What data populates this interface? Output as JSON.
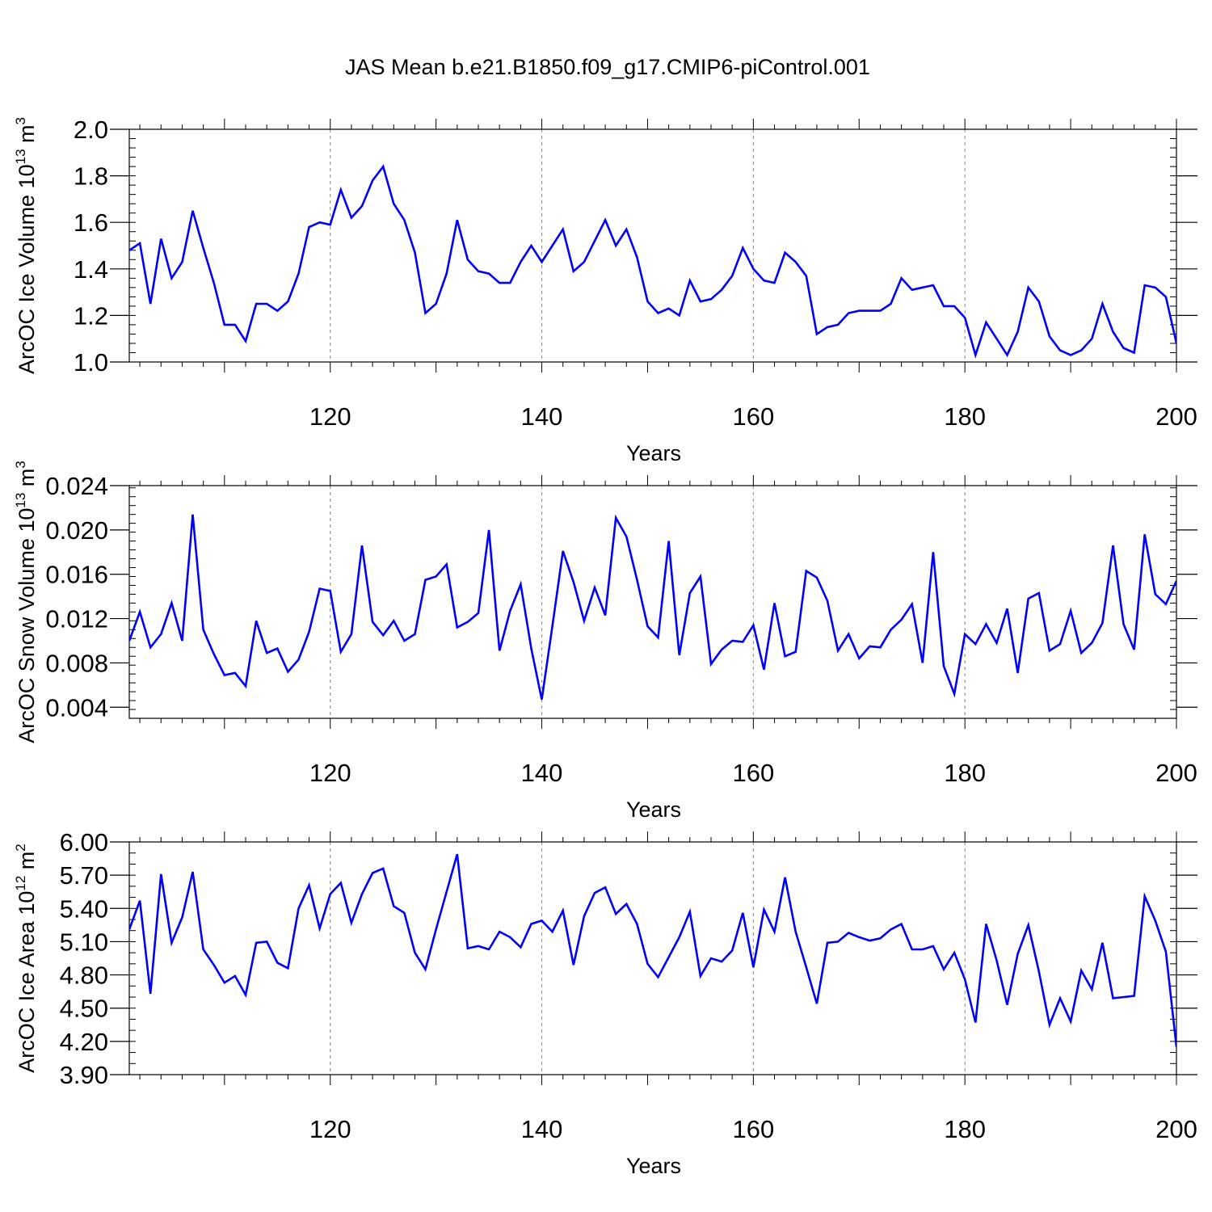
{
  "chart_data": {
    "type": "line",
    "title": "JAS Mean b.e21.B1850.f09_g17.CMIP6-piControl.001",
    "line_color": "#0000ff",
    "grid_color": "#888888",
    "panels": [
      {
        "ylabel_main": "ArcOC Ice Volume 10",
        "ylabel_sup": "13",
        "ylabel_unit": " m",
        "ylabel_unit_sup": "3",
        "xlabel": "Years",
        "xlim": [
          101,
          200
        ],
        "ylim": [
          1.0,
          2.0
        ],
        "x_ticks": [
          120,
          140,
          160,
          180,
          200
        ],
        "x_tick_labels": [
          "120",
          "140",
          "160",
          "180",
          "200"
        ],
        "y_ticks": [
          1.0,
          1.2,
          1.4,
          1.6,
          1.8,
          2.0
        ],
        "y_tick_labels": [
          "1.0",
          "1.2",
          "1.4",
          "1.6",
          "1.8",
          "2.0"
        ],
        "y_minor_step": 0.04,
        "x": [
          101,
          102,
          103,
          104,
          105,
          106,
          107,
          108,
          109,
          110,
          111,
          112,
          113,
          114,
          115,
          116,
          117,
          118,
          119,
          120,
          121,
          122,
          123,
          124,
          125,
          126,
          127,
          128,
          129,
          130,
          131,
          132,
          133,
          134,
          135,
          136,
          137,
          138,
          139,
          140,
          141,
          142,
          143,
          144,
          145,
          146,
          147,
          148,
          149,
          150,
          151,
          152,
          153,
          154,
          155,
          156,
          157,
          158,
          159,
          160,
          161,
          162,
          163,
          164,
          165,
          166,
          167,
          168,
          169,
          170,
          171,
          172,
          173,
          174,
          175,
          176,
          177,
          178,
          179,
          180,
          181,
          182,
          183,
          184,
          185,
          186,
          187,
          188,
          189,
          190,
          191,
          192,
          193,
          194,
          195,
          196,
          197,
          198,
          199,
          200
        ],
        "values": [
          1.48,
          1.51,
          1.25,
          1.53,
          1.36,
          1.43,
          1.65,
          1.49,
          1.34,
          1.16,
          1.16,
          1.09,
          1.25,
          1.25,
          1.22,
          1.26,
          1.38,
          1.58,
          1.6,
          1.59,
          1.74,
          1.62,
          1.67,
          1.78,
          1.84,
          1.68,
          1.61,
          1.47,
          1.21,
          1.25,
          1.38,
          1.61,
          1.44,
          1.39,
          1.38,
          1.34,
          1.34,
          1.43,
          1.5,
          1.43,
          1.5,
          1.57,
          1.39,
          1.43,
          1.52,
          1.61,
          1.5,
          1.57,
          1.45,
          1.26,
          1.21,
          1.23,
          1.2,
          1.35,
          1.26,
          1.27,
          1.31,
          1.37,
          1.49,
          1.4,
          1.35,
          1.34,
          1.47,
          1.43,
          1.37,
          1.12,
          1.15,
          1.16,
          1.21,
          1.22,
          1.22,
          1.22,
          1.25,
          1.36,
          1.31,
          1.32,
          1.33,
          1.24,
          1.24,
          1.19,
          1.03,
          1.17,
          1.1,
          1.03,
          1.13,
          1.32,
          1.26,
          1.11,
          1.05,
          1.03,
          1.05,
          1.1,
          1.25,
          1.13,
          1.06,
          1.04,
          1.33,
          1.32,
          1.28,
          1.08
        ]
      },
      {
        "ylabel_main": "ArcOC Snow Volume 10",
        "ylabel_sup": "13",
        "ylabel_unit": " m",
        "ylabel_unit_sup": "3",
        "xlabel": "Years",
        "xlim": [
          101,
          200
        ],
        "ylim": [
          0.003,
          0.024
        ],
        "x_ticks": [
          120,
          140,
          160,
          180,
          200
        ],
        "x_tick_labels": [
          "120",
          "140",
          "160",
          "180",
          "200"
        ],
        "y_ticks": [
          0.004,
          0.008,
          0.012,
          0.016,
          0.02,
          0.024
        ],
        "y_tick_labels": [
          "0.004",
          "0.008",
          "0.012",
          "0.016",
          "0.020",
          "0.024"
        ],
        "y_minor_step": 0.0008,
        "x": [
          101,
          102,
          103,
          104,
          105,
          106,
          107,
          108,
          109,
          110,
          111,
          112,
          113,
          114,
          115,
          116,
          117,
          118,
          119,
          120,
          121,
          122,
          123,
          124,
          125,
          126,
          127,
          128,
          129,
          130,
          131,
          132,
          133,
          134,
          135,
          136,
          137,
          138,
          139,
          140,
          141,
          142,
          143,
          144,
          145,
          146,
          147,
          148,
          149,
          150,
          151,
          152,
          153,
          154,
          155,
          156,
          157,
          158,
          159,
          160,
          161,
          162,
          163,
          164,
          165,
          166,
          167,
          168,
          169,
          170,
          171,
          172,
          173,
          174,
          175,
          176,
          177,
          178,
          179,
          180,
          181,
          182,
          183,
          184,
          185,
          186,
          187,
          188,
          189,
          190,
          191,
          192,
          193,
          194,
          195,
          196,
          197,
          198,
          199,
          200
        ],
        "values": [
          0.01,
          0.0126,
          0.0094,
          0.0106,
          0.0134,
          0.01,
          0.0214,
          0.011,
          0.0088,
          0.0069,
          0.0071,
          0.0059,
          0.0118,
          0.0089,
          0.0093,
          0.0072,
          0.0083,
          0.0108,
          0.0147,
          0.0145,
          0.009,
          0.0106,
          0.0186,
          0.0117,
          0.0105,
          0.0118,
          0.01,
          0.0106,
          0.0155,
          0.0158,
          0.0169,
          0.0112,
          0.0117,
          0.0125,
          0.02,
          0.0091,
          0.0127,
          0.0151,
          0.0093,
          0.0047,
          0.0113,
          0.0181,
          0.0153,
          0.0118,
          0.0148,
          0.0123,
          0.0211,
          0.0194,
          0.0155,
          0.0113,
          0.0103,
          0.019,
          0.0087,
          0.0143,
          0.0158,
          0.0079,
          0.0092,
          0.01,
          0.0099,
          0.0114,
          0.0074,
          0.0134,
          0.0086,
          0.009,
          0.0163,
          0.0157,
          0.0136,
          0.0091,
          0.0106,
          0.0084,
          0.0095,
          0.0094,
          0.011,
          0.0119,
          0.0133,
          0.008,
          0.018,
          0.0077,
          0.0052,
          0.0106,
          0.0097,
          0.0115,
          0.0098,
          0.0129,
          0.0071,
          0.0138,
          0.0143,
          0.0091,
          0.0097,
          0.0127,
          0.0089,
          0.0098,
          0.0116,
          0.0186,
          0.0115,
          0.0092,
          0.0196,
          0.0142,
          0.0133,
          0.0154
        ]
      },
      {
        "ylabel_main": "ArcOC Ice Area 10",
        "ylabel_sup": "12",
        "ylabel_unit": " m",
        "ylabel_unit_sup": "2",
        "xlabel": "Years",
        "xlim": [
          101,
          200
        ],
        "ylim": [
          3.9,
          6.0
        ],
        "x_ticks": [
          120,
          140,
          160,
          180,
          200
        ],
        "x_tick_labels": [
          "120",
          "140",
          "160",
          "180",
          "200"
        ],
        "y_ticks": [
          3.9,
          4.2,
          4.5,
          4.8,
          5.1,
          5.4,
          5.7,
          6.0
        ],
        "y_tick_labels": [
          "3.90",
          "4.20",
          "4.50",
          "4.80",
          "5.10",
          "5.40",
          "5.70",
          "6.00"
        ],
        "y_minor_step": 0.1,
        "x": [
          101,
          102,
          103,
          104,
          105,
          106,
          107,
          108,
          109,
          110,
          111,
          112,
          113,
          114,
          115,
          116,
          117,
          118,
          119,
          120,
          121,
          122,
          123,
          124,
          125,
          126,
          127,
          128,
          129,
          130,
          131,
          132,
          133,
          134,
          135,
          136,
          137,
          138,
          139,
          140,
          141,
          142,
          143,
          144,
          145,
          146,
          147,
          148,
          149,
          150,
          151,
          152,
          153,
          154,
          155,
          156,
          157,
          158,
          159,
          160,
          161,
          162,
          163,
          164,
          165,
          166,
          167,
          168,
          169,
          170,
          171,
          172,
          173,
          174,
          175,
          176,
          177,
          178,
          179,
          180,
          181,
          182,
          183,
          184,
          185,
          186,
          187,
          188,
          189,
          190,
          191,
          192,
          193,
          194,
          195,
          196,
          197,
          198,
          199,
          200
        ],
        "values": [
          5.21,
          5.47,
          4.63,
          5.71,
          5.09,
          5.32,
          5.73,
          5.03,
          4.89,
          4.73,
          4.79,
          4.62,
          5.09,
          5.1,
          4.91,
          4.86,
          5.4,
          5.61,
          5.22,
          5.53,
          5.63,
          5.27,
          5.53,
          5.72,
          5.76,
          5.42,
          5.36,
          5.0,
          4.85,
          5.21,
          5.55,
          5.89,
          5.04,
          5.06,
          5.03,
          5.19,
          5.14,
          5.05,
          5.26,
          5.29,
          5.19,
          5.38,
          4.89,
          5.33,
          5.54,
          5.59,
          5.35,
          5.44,
          5.26,
          4.9,
          4.78,
          4.96,
          5.14,
          5.37,
          4.79,
          4.95,
          4.92,
          5.02,
          5.36,
          4.87,
          5.39,
          5.19,
          5.68,
          5.19,
          4.87,
          4.54,
          5.09,
          5.1,
          5.18,
          5.14,
          5.11,
          5.13,
          5.21,
          5.26,
          5.03,
          5.03,
          5.06,
          4.85,
          5.0,
          4.76,
          4.37,
          5.26,
          4.93,
          4.53,
          4.99,
          5.25,
          4.83,
          4.35,
          4.59,
          4.38,
          4.84,
          4.67,
          5.09,
          4.59,
          4.6,
          4.61,
          5.51,
          5.29,
          5.01,
          4.15
        ]
      }
    ]
  }
}
